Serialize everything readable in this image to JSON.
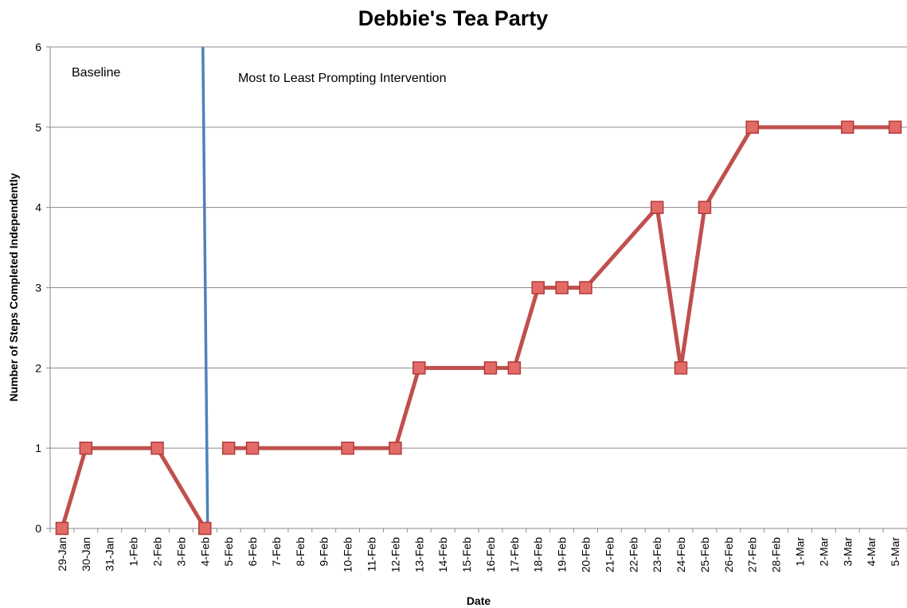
{
  "chart_data": {
    "type": "line",
    "title": "Debbie's Tea Party",
    "xlabel": "Date",
    "ylabel": "Number of Steps Completed Independently",
    "ylim": [
      0,
      6
    ],
    "yticks": [
      "0",
      "1",
      "2",
      "3",
      "4",
      "5",
      "6"
    ],
    "grid": true,
    "categories": [
      "29-Jan",
      "30-Jan",
      "31-Jan",
      "1-Feb",
      "2-Feb",
      "3-Feb",
      "4-Feb",
      "5-Feb",
      "6-Feb",
      "7-Feb",
      "8-Feb",
      "9-Feb",
      "10-Feb",
      "11-Feb",
      "12-Feb",
      "13-Feb",
      "14-Feb",
      "15-Feb",
      "16-Feb",
      "17-Feb",
      "18-Feb",
      "19-Feb",
      "20-Feb",
      "21-Feb",
      "22-Feb",
      "23-Feb",
      "24-Feb",
      "25-Feb",
      "26-Feb",
      "27-Feb",
      "28-Feb",
      "1-Mar",
      "2-Mar",
      "3-Mar",
      "4-Mar",
      "5-Mar"
    ],
    "series": [
      {
        "name": "",
        "color": "#c0504d",
        "marker": "square",
        "segments": [
          [
            {
              "x": "29-Jan",
              "y": 0
            },
            {
              "x": "30-Jan",
              "y": 1
            },
            {
              "x": "2-Feb",
              "y": 1
            },
            {
              "x": "4-Feb",
              "y": 0
            }
          ],
          [
            {
              "x": "5-Feb",
              "y": 1
            },
            {
              "x": "6-Feb",
              "y": 1
            },
            {
              "x": "10-Feb",
              "y": 1
            },
            {
              "x": "12-Feb",
              "y": 1
            },
            {
              "x": "13-Feb",
              "y": 2
            },
            {
              "x": "16-Feb",
              "y": 2
            },
            {
              "x": "17-Feb",
              "y": 2
            },
            {
              "x": "18-Feb",
              "y": 3
            },
            {
              "x": "19-Feb",
              "y": 3
            },
            {
              "x": "20-Feb",
              "y": 3
            },
            {
              "x": "23-Feb",
              "y": 4
            },
            {
              "x": "24-Feb",
              "y": 2
            },
            {
              "x": "25-Feb",
              "y": 4
            },
            {
              "x": "27-Feb",
              "y": 5
            },
            {
              "x": "3-Mar",
              "y": 5
            },
            {
              "x": "5-Mar",
              "y": 5
            }
          ]
        ]
      }
    ],
    "phase_line": {
      "after": "4-Feb",
      "color": "#4f81bd"
    },
    "phase_labels": {
      "baseline": "Baseline",
      "intervention": "Most to Least Prompting Intervention"
    }
  }
}
